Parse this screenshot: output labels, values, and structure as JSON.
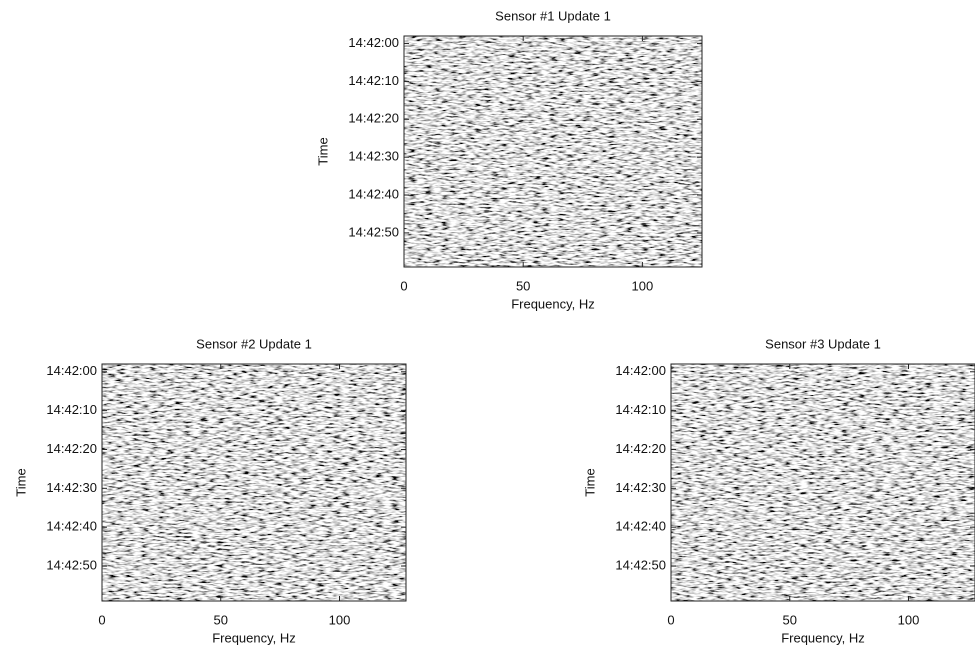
{
  "chart_data": [
    {
      "type": "heatmap",
      "title": "Sensor #1 Update 1",
      "x_label": "Frequency, Hz",
      "y_label": "Time",
      "xlim": [
        0,
        125
      ],
      "xticks": [
        0,
        50,
        100
      ],
      "ylim": [
        "14:41:58",
        "14:42:59"
      ],
      "yticks": [
        "14:42:00",
        "14:42:10",
        "14:42:20",
        "14:42:30",
        "14:42:40",
        "14:42:50"
      ]
    },
    {
      "type": "heatmap",
      "title": "Sensor #2 Update 1",
      "x_label": "Frequency, Hz",
      "y_label": "Time",
      "xlim": [
        0,
        128
      ],
      "xticks": [
        0,
        50,
        100
      ],
      "ylim": [
        "14:41:58",
        "14:42:59"
      ],
      "yticks": [
        "14:42:00",
        "14:42:10",
        "14:42:20",
        "14:42:30",
        "14:42:40",
        "14:42:50"
      ]
    },
    {
      "type": "heatmap",
      "title": "Sensor #3 Update 1",
      "x_label": "Frequency, Hz",
      "y_label": "Time",
      "xlim": [
        0,
        128
      ],
      "xticks": [
        0,
        50,
        100
      ],
      "ylim": [
        "14:41:58",
        "14:42:59"
      ],
      "yticks": [
        "14:42:00",
        "14:42:10",
        "14:42:20",
        "14:42:30",
        "14:42:40",
        "14:42:50"
      ]
    }
  ]
}
